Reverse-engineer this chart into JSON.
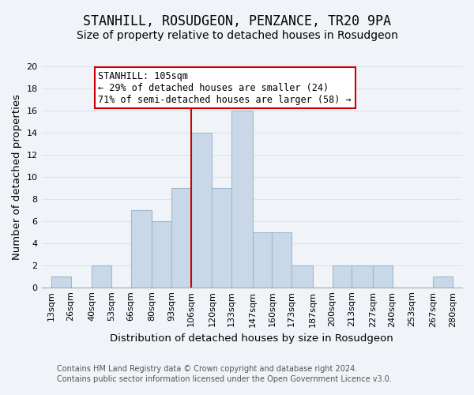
{
  "title": "STANHILL, ROSUDGEON, PENZANCE, TR20 9PA",
  "subtitle": "Size of property relative to detached houses in Rosudgeon",
  "xlabel": "Distribution of detached houses by size in Rosudgeon",
  "ylabel": "Number of detached properties",
  "bin_edges": [
    13,
    26,
    40,
    53,
    66,
    80,
    93,
    106,
    120,
    133,
    147,
    160,
    173,
    187,
    200,
    213,
    227,
    240,
    253,
    267,
    280
  ],
  "bar_heights": [
    1,
    0,
    2,
    0,
    7,
    6,
    9,
    14,
    9,
    16,
    5,
    5,
    2,
    0,
    2,
    2,
    2,
    0,
    0,
    1
  ],
  "bar_color": "#c8d8e8",
  "bar_edgecolor": "#a0b8cc",
  "bar_linewidth": 0.8,
  "vline_x": 106,
  "vline_color": "#cc0000",
  "ylim": [
    0,
    20
  ],
  "yticks": [
    0,
    2,
    4,
    6,
    8,
    10,
    12,
    14,
    16,
    18,
    20
  ],
  "xtick_labels": [
    "13sqm",
    "26sqm",
    "40sqm",
    "53sqm",
    "66sqm",
    "80sqm",
    "93sqm",
    "106sqm",
    "120sqm",
    "133sqm",
    "147sqm",
    "160sqm",
    "173sqm",
    "187sqm",
    "200sqm",
    "213sqm",
    "227sqm",
    "240sqm",
    "253sqm",
    "267sqm",
    "280sqm"
  ],
  "annotation_title": "STANHILL: 105sqm",
  "annotation_line1": "← 29% of detached houses are smaller (24)",
  "annotation_line2": "71% of semi-detached houses are larger (58) →",
  "annotation_box_color": "#ffffff",
  "annotation_box_edgecolor": "#cc0000",
  "footer_line1": "Contains HM Land Registry data © Crown copyright and database right 2024.",
  "footer_line2": "Contains public sector information licensed under the Open Government Licence v3.0.",
  "grid_color": "#d8e4ec",
  "background_color": "#f0f4f8",
  "title_fontsize": 12,
  "subtitle_fontsize": 10,
  "axis_label_fontsize": 9.5,
  "tick_fontsize": 8,
  "annotation_fontsize": 8.5,
  "footer_fontsize": 7
}
